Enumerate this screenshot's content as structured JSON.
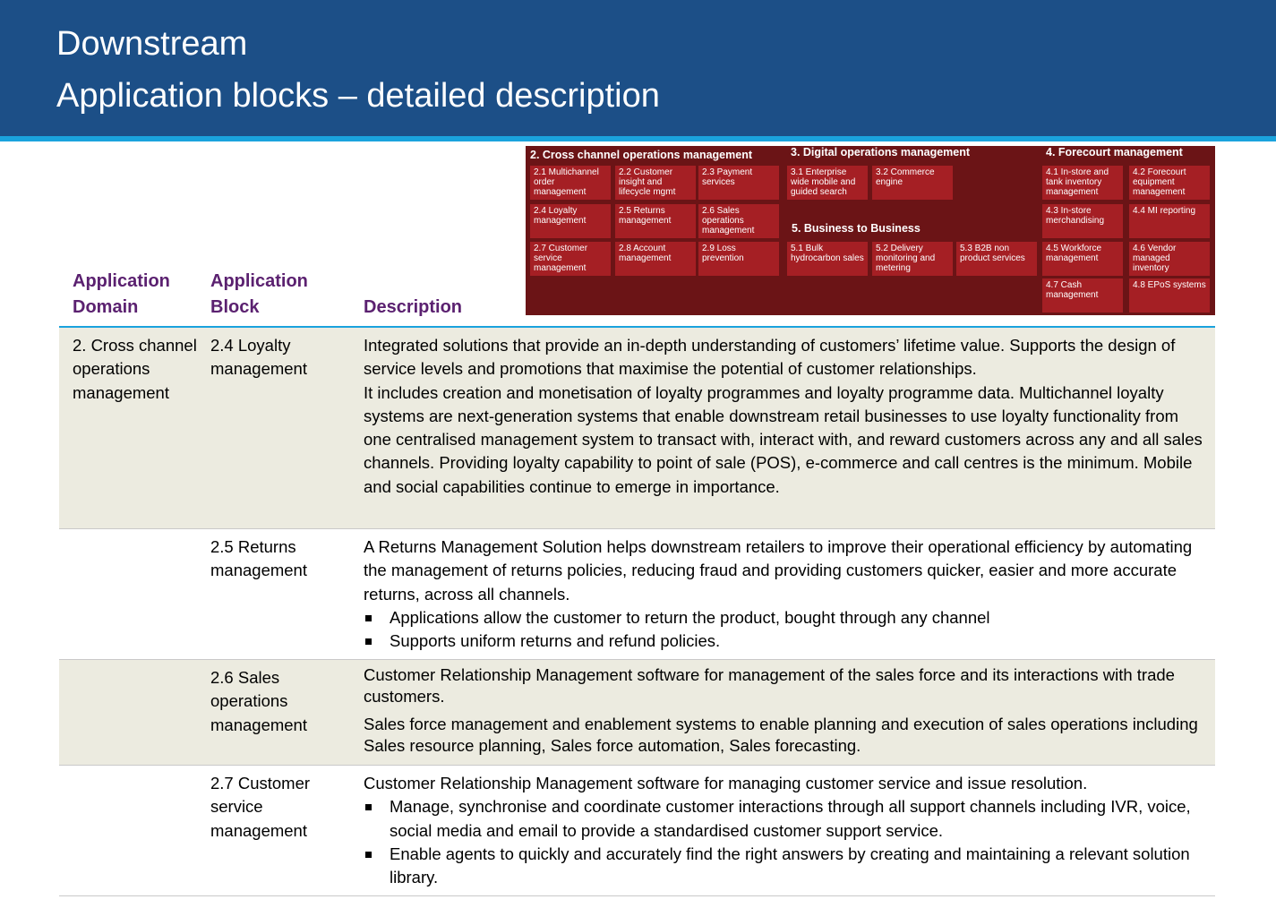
{
  "header": {
    "title_line1": "Downstream",
    "title_line2": "Application blocks – detailed description"
  },
  "map": {
    "sections": {
      "s2": "2. Cross channel operations management",
      "s3": "3. Digital operations management",
      "s4": "4. Forecourt management",
      "s5": "5. Business to Business"
    },
    "blocks": {
      "b21": "2.1 Multichannel order management",
      "b22": "2.2 Customer insight and lifecycle mgmt",
      "b23": "2.3 Payment services",
      "b24": "2.4 Loyalty management",
      "b25": "2.5 Returns management",
      "b26": "2.6 Sales operations management",
      "b27": "2.7 Customer service management",
      "b28": "2.8 Account management",
      "b29": "2.9 Loss prevention",
      "b31": "3.1 Enterprise wide mobile and guided search",
      "b32": "3.2 Commerce engine",
      "b51": "5.1 Bulk hydrocarbon sales",
      "b52": "5.2 Delivery monitoring and metering",
      "b53": "5.3 B2B non product services",
      "b41": "4.1 In-store and tank inventory management",
      "b42": "4.2 Forecourt equipment management",
      "b43": "4.3 In-store merchandising",
      "b44": "4.4 MI reporting",
      "b45": "4.5 Workforce management",
      "b46": "4.6 Vendor managed inventory",
      "b47": "4.7 Cash management",
      "b48": "4.8 EPoS systems"
    }
  },
  "table": {
    "col_domain_1": "Application",
    "col_domain_2": "Domain",
    "col_block_1": "Application",
    "col_block_2": "Block",
    "col_desc": "Description",
    "rows": [
      {
        "domain": "2. Cross channel operations management",
        "block": "2.4 Loyalty management",
        "p1": "Integrated solutions that provide an in-depth understanding of customers’ lifetime value.  Supports the design of service levels and promotions that maximise the potential of customer relationships.",
        "p2": "It includes creation and monetisation of loyalty programmes and loyalty programme data. Multichannel loyalty systems are next-generation systems that enable downstream retail businesses to use loyalty functionality from one centralised management system to transact with, interact with, and reward customers across any and all sales channels. Providing loyalty capability to point of sale (POS),  e-commerce and call centres is the minimum. Mobile and social capabilities continue to emerge in importance."
      },
      {
        "domain": "",
        "block": "2.5 Returns management",
        "p1": "A Returns Management Solution helps  downstream retailers to improve their operational efficiency  by automating the management of returns policies,  reducing fraud and providing customers quicker, easier and more accurate returns, across all channels.",
        "bullets": [
          "Applications allow the customer to return the product, bought through any channel",
          "Supports uniform returns and refund policies."
        ]
      },
      {
        "domain": "",
        "block": "2.6 Sales operations management",
        "p1": "Customer Relationship Management software for management of the sales force and its interactions with trade customers.",
        "p2": "Sales force management and enablement systems to enable planning and execution of sales operations including  Sales resource planning, Sales force automation, Sales forecasting."
      },
      {
        "domain": "",
        "block": "2.7 Customer service management",
        "p1": "Customer Relationship Management software for managing customer service and issue resolution.",
        "bullets": [
          "Manage, synchronise and coordinate customer interactions through all support channels including IVR, voice, social media and email to provide a standardised customer support service.",
          "Enable agents to quickly and accurately find the right answers by creating and maintaining a relevant solution library."
        ]
      }
    ]
  }
}
